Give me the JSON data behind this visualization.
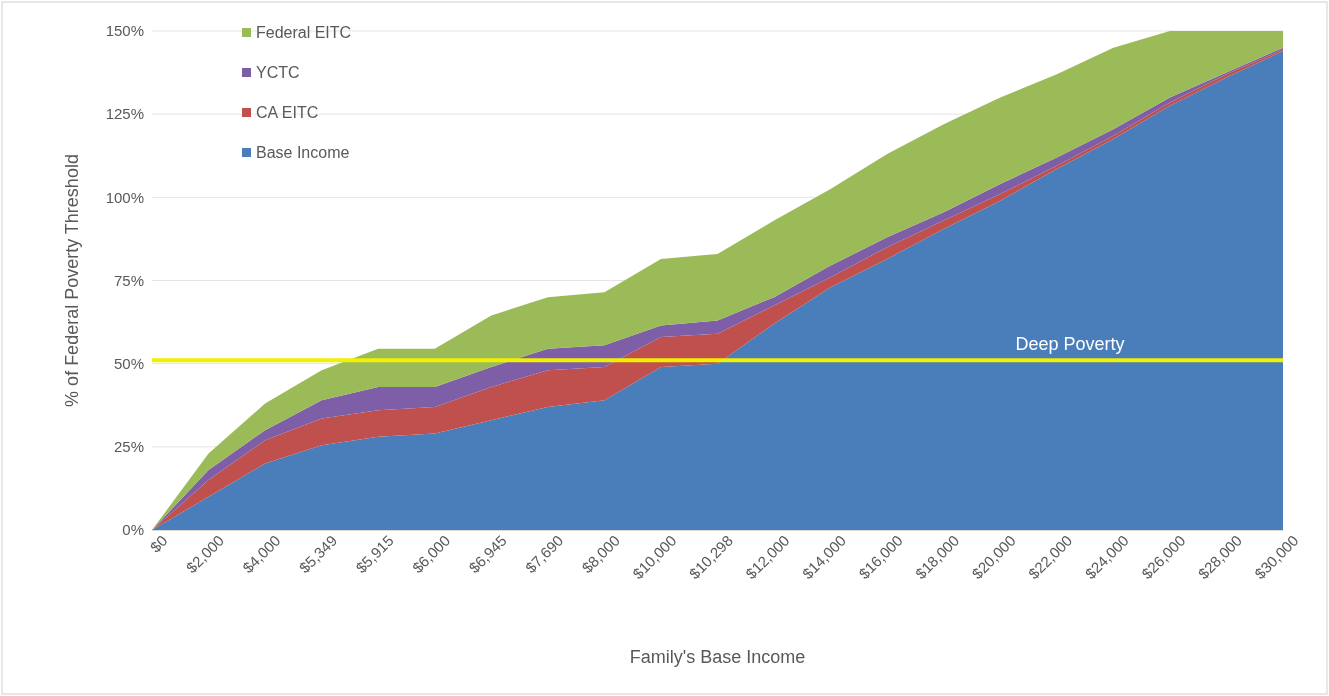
{
  "chart_data": {
    "type": "area",
    "stacked": true,
    "xlabel": "Family's Base Income",
    "ylabel": "% of Federal Poverty Threshold",
    "categories": [
      "$0",
      "$2,000",
      "$4,000",
      "$5,349",
      "$5,915",
      "$6,000",
      "$6,945",
      "$7,690",
      "$8,000",
      "$10,000",
      "$10,298",
      "$12,000",
      "$14,000",
      "$16,000",
      "$18,000",
      "$20,000",
      "$22,000",
      "$24,000",
      "$26,000",
      "$28,000",
      "$30,000"
    ],
    "series": [
      {
        "name": "Base Income",
        "color": "#4a7ebb",
        "values": [
          0,
          10,
          20,
          25.5,
          28,
          29,
          33,
          37,
          39,
          49,
          50,
          62,
          73,
          81.5,
          90.5,
          99,
          108.5,
          117.5,
          127.5,
          136,
          144
        ]
      },
      {
        "name": "CA EITC",
        "color": "#c0504d",
        "values": [
          0,
          5,
          7,
          8,
          8,
          8,
          10,
          11,
          10,
          9,
          9,
          5.5,
          3,
          3.5,
          2.5,
          2,
          1,
          1,
          1,
          1,
          0.5
        ]
      },
      {
        "name": "YCTC",
        "color": "#7f5ea8",
        "values": [
          0,
          3,
          3,
          5.5,
          7,
          6,
          6,
          6.5,
          6.5,
          3.5,
          4,
          2.5,
          3.5,
          3,
          2.5,
          3,
          2.5,
          2,
          1.5,
          0.5,
          0.5
        ]
      },
      {
        "name": "Federal EITC",
        "color": "#9bbb59",
        "values": [
          0,
          5,
          8,
          9,
          11.5,
          11.5,
          15.5,
          15.5,
          16,
          20,
          20,
          23,
          23,
          25,
          26.5,
          26,
          25,
          24.5,
          20,
          12.5,
          5
        ]
      }
    ],
    "ylim": [
      0,
      150
    ],
    "yticks": [
      {
        "value": 0,
        "label": "0%"
      },
      {
        "value": 25,
        "label": "25%"
      },
      {
        "value": 50,
        "label": "50%"
      },
      {
        "value": 75,
        "label": "75%"
      },
      {
        "value": 100,
        "label": "100%"
      },
      {
        "value": 125,
        "label": "125%"
      },
      {
        "value": 150,
        "label": "150%"
      }
    ],
    "grid": "y",
    "legend": "top left",
    "ref_lines": [
      {
        "axis": "y",
        "value": 51,
        "label": "Deep Poverty",
        "color": "#f0f000"
      }
    ]
  }
}
